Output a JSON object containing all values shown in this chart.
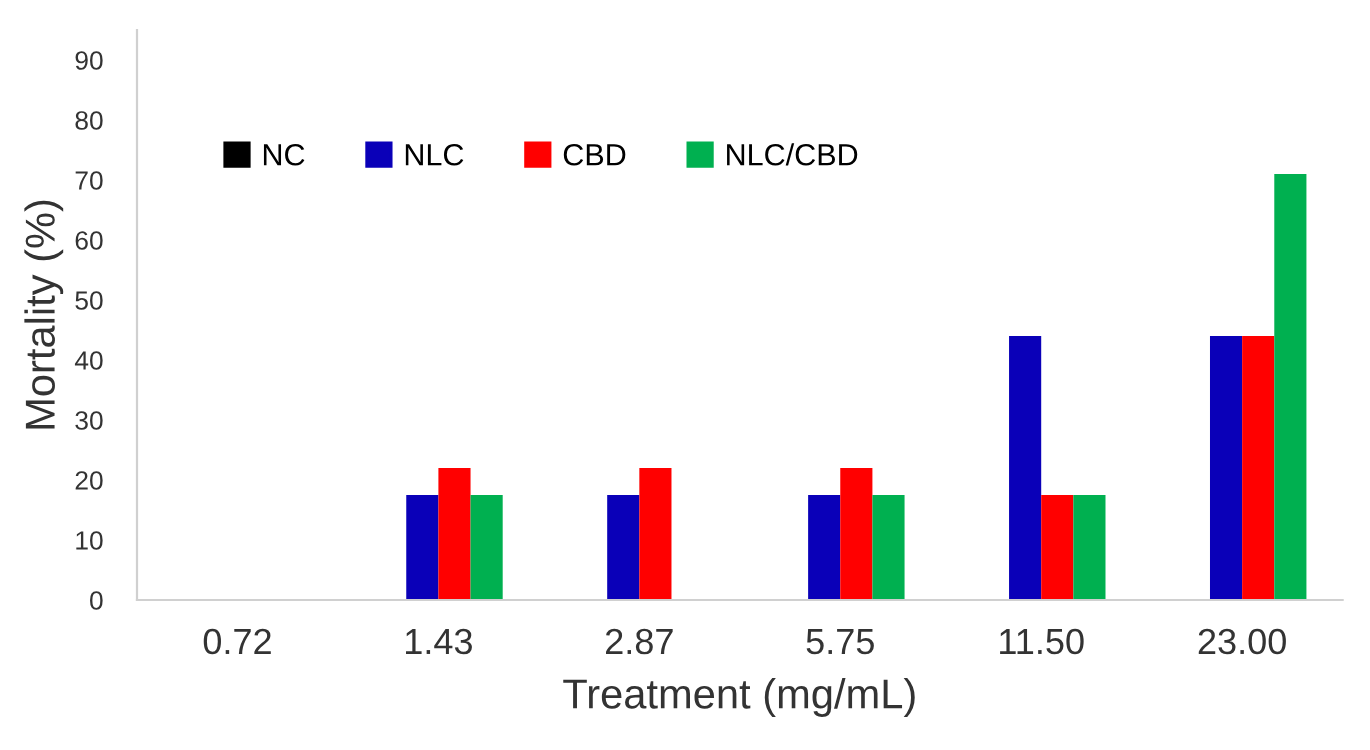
{
  "chart_data": {
    "type": "bar",
    "xlabel": "Treatment (mg/mL)",
    "ylabel": "Mortality (%)",
    "categories": [
      "0.72",
      "1.43",
      "2.87",
      "5.75",
      "11.50",
      "23.00"
    ],
    "series": [
      {
        "name": "NC",
        "color": "#000000",
        "values": [
          0,
          0,
          0,
          0,
          0,
          0
        ]
      },
      {
        "name": "NLC",
        "color": "#0a00b8",
        "values": [
          0,
          17.5,
          17.5,
          17.5,
          44,
          44
        ]
      },
      {
        "name": "CBD",
        "color": "#ff0000",
        "values": [
          0,
          22,
          22,
          22,
          17.5,
          44
        ]
      },
      {
        "name": "NLC/CBD",
        "color": "#00b050",
        "values": [
          0,
          17.5,
          0,
          17.5,
          17.5,
          71
        ]
      }
    ],
    "ylim": [
      0,
      95
    ],
    "yticks": [
      0,
      10,
      20,
      30,
      40,
      50,
      60,
      70,
      80,
      90
    ],
    "grid": false,
    "legend": "top left"
  }
}
